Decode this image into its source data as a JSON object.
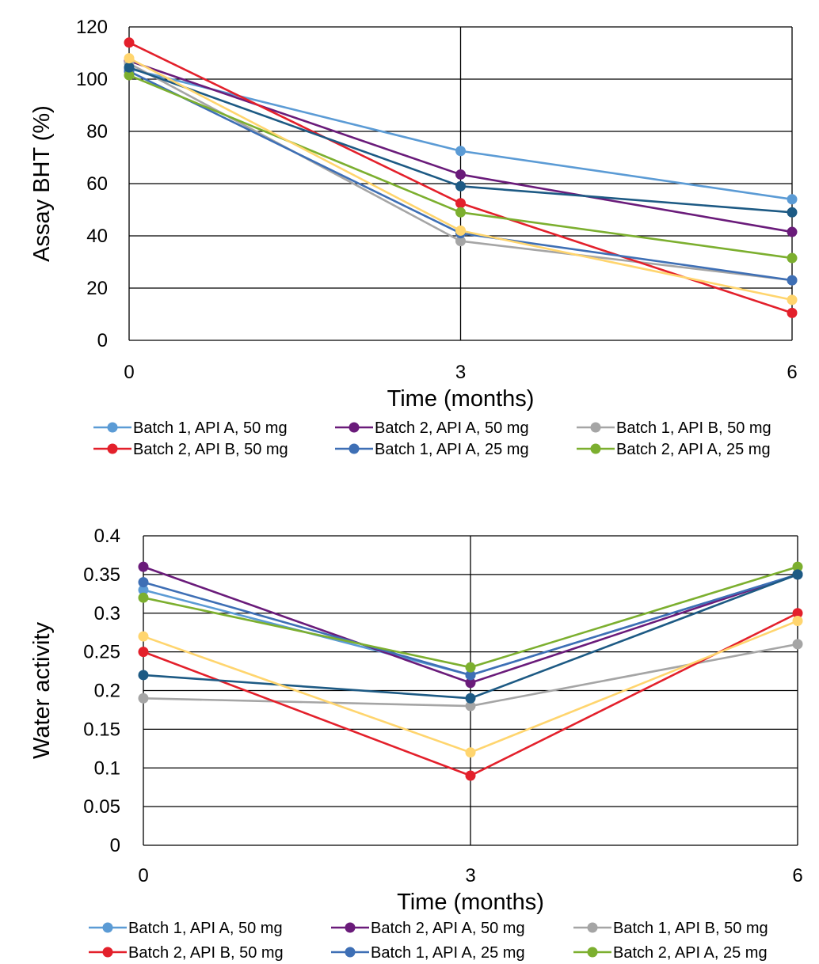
{
  "chart_data": [
    {
      "type": "line",
      "xlabel": "Time (months)",
      "ylabel": "Assay BHT (%)",
      "x": [
        0,
        3,
        6
      ],
      "xticks": [
        "0",
        "3",
        "6"
      ],
      "ylim": [
        0,
        120
      ],
      "yticks": [
        "0",
        "20",
        "40",
        "60",
        "80",
        "100",
        "120"
      ],
      "grid": true,
      "legend_placement": "bottom",
      "series": [
        {
          "name": "Batch 1, API A, 50 mg",
          "color": "#5B9BD5",
          "values": [
            104,
            72.5,
            54
          ]
        },
        {
          "name": "Batch 2, API A, 50 mg",
          "color": "#6A1B7A",
          "values": [
            107,
            63.5,
            41.5
          ]
        },
        {
          "name": "Batch 1, API B, 50 mg",
          "color": "#A5A5A5",
          "values": [
            106,
            38,
            23
          ]
        },
        {
          "name": "Batch 2, API B, 50 mg",
          "color": "#E3202B",
          "values": [
            114,
            52.5,
            10.5
          ]
        },
        {
          "name": "Batch 1, API A, 25 mg",
          "color": "#3E6FB5",
          "values": [
            103,
            41,
            23
          ]
        },
        {
          "name": "Batch 2, API A, 25 mg",
          "color": "#7CAF2F",
          "values": [
            101.5,
            49,
            31.5
          ]
        },
        {
          "name": "",
          "color": "#1D5A84",
          "values": [
            104.5,
            59,
            49
          ]
        },
        {
          "name": "",
          "color": "#FFD56E",
          "values": [
            108,
            42,
            15.5
          ]
        }
      ]
    },
    {
      "type": "line",
      "xlabel": "Time (months)",
      "ylabel": "Water activity",
      "x": [
        0,
        3,
        6
      ],
      "xticks": [
        "0",
        "3",
        "6"
      ],
      "ylim": [
        0,
        0.4
      ],
      "yticks": [
        "0",
        "0.05",
        "0.1",
        "0.15",
        "0.2",
        "0.25",
        "0.3",
        "0.35",
        "0.4"
      ],
      "grid": true,
      "legend_placement": "bottom",
      "series": [
        {
          "name": "Batch 1, API A, 50 mg",
          "color": "#5B9BD5",
          "values": [
            0.33,
            0.22,
            0.35
          ]
        },
        {
          "name": "Batch 2, API A, 50 mg",
          "color": "#6A1B7A",
          "values": [
            0.36,
            0.21,
            0.35
          ]
        },
        {
          "name": "Batch 1, API B, 50 mg",
          "color": "#A5A5A5",
          "values": [
            0.19,
            0.18,
            0.26
          ]
        },
        {
          "name": "Batch 2, API B, 50 mg",
          "color": "#E3202B",
          "values": [
            0.25,
            0.09,
            0.3
          ]
        },
        {
          "name": "Batch 1, API A, 25 mg",
          "color": "#3E6FB5",
          "values": [
            0.34,
            0.22,
            0.35
          ]
        },
        {
          "name": "Batch 2, API A, 25 mg",
          "color": "#7CAF2F",
          "values": [
            0.32,
            0.23,
            0.36
          ]
        },
        {
          "name": "",
          "color": "#1D5A84",
          "values": [
            0.22,
            0.19,
            0.35
          ]
        },
        {
          "name": "",
          "color": "#FFD56E",
          "values": [
            0.27,
            0.12,
            0.29
          ]
        }
      ]
    }
  ]
}
